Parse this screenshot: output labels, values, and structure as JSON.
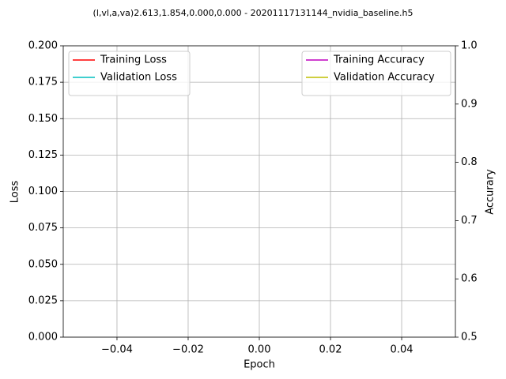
{
  "chart_data": {
    "type": "line",
    "title": "(l,vl,a,va)2.613,1.854,0.000,0.000 - 20201117131144_nvidia_baseline.h5",
    "x_label": "Epoch",
    "y_label": "Loss",
    "y2_label": "Accurary",
    "x": [],
    "series": [
      {
        "name": "Training Loss",
        "color": "#ff0000",
        "values": []
      },
      {
        "name": "Validation Loss",
        "color": "#00bfbf",
        "values": []
      },
      {
        "name": "Training Accuracy",
        "color": "#bf00bf",
        "values": [],
        "axis": "y2"
      },
      {
        "name": "Validation Accuracy",
        "color": "#bfbf00",
        "values": [],
        "axis": "y2"
      }
    ],
    "xlim": [
      -0.0551,
      0.0551
    ],
    "xticks": [
      {
        "value": -0.04,
        "label": "−0.04"
      },
      {
        "value": -0.02,
        "label": "−0.02"
      },
      {
        "value": 0,
        "label": "0.00"
      },
      {
        "value": 0.02,
        "label": "0.02"
      },
      {
        "value": 0.04,
        "label": "0.04"
      }
    ],
    "ylim": [
      0,
      0.2
    ],
    "yticks": [
      {
        "value": 0,
        "label": "0.000"
      },
      {
        "value": 0.025,
        "label": "0.025"
      },
      {
        "value": 0.05,
        "label": "0.050"
      },
      {
        "value": 0.075,
        "label": "0.075"
      },
      {
        "value": 0.1,
        "label": "0.100"
      },
      {
        "value": 0.125,
        "label": "0.125"
      },
      {
        "value": 0.15,
        "label": "0.150"
      },
      {
        "value": 0.175,
        "label": "0.175"
      },
      {
        "value": 0.2,
        "label": "0.200"
      }
    ],
    "y2lim": [
      0.5,
      1.0
    ],
    "y2ticks": [
      0.5,
      0.6,
      0.7,
      0.8,
      0.9,
      {
        "value": 1.0,
        "label": "1.0"
      }
    ],
    "grid": true,
    "legend": [
      "upper left",
      "upper right"
    ]
  }
}
